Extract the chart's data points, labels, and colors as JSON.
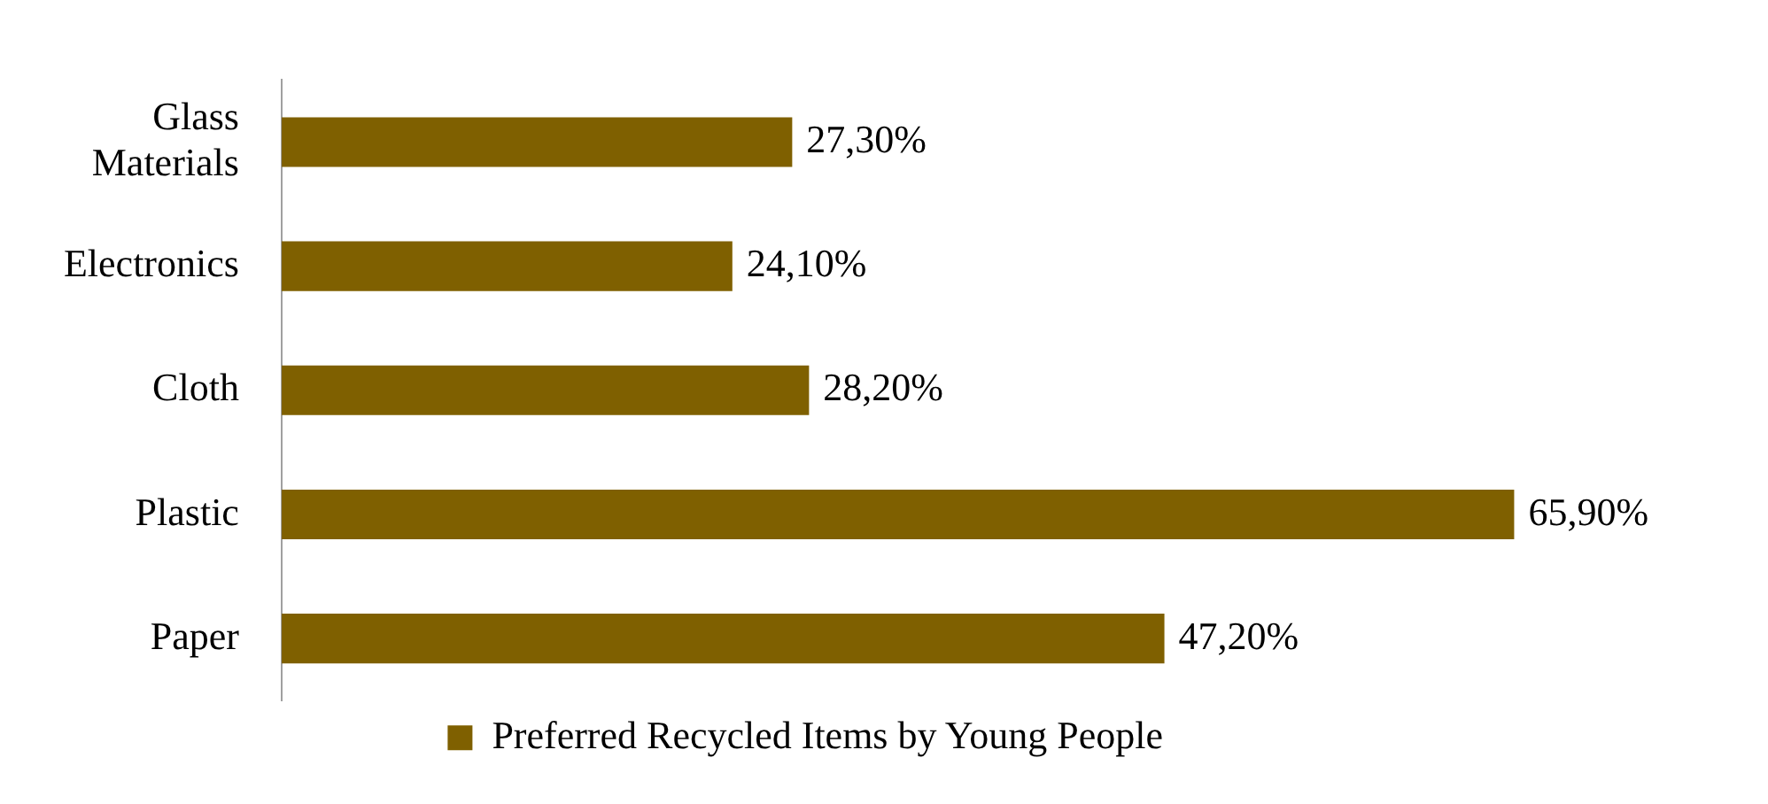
{
  "chart_data": {
    "type": "bar",
    "orientation": "horizontal",
    "categories": [
      "Glass Materials",
      "Electronics",
      "Cloth",
      "Plastic",
      "Paper"
    ],
    "series": [
      {
        "name": "Preferred Recycled Items by Young People",
        "color": "#7f6000",
        "values": [
          27.3,
          24.1,
          28.2,
          65.9,
          47.2
        ],
        "value_labels": [
          "27,30%",
          "24,10%",
          "28,20%",
          "65,90%",
          "47,20%"
        ]
      }
    ],
    "legend": "bottom",
    "grid": false
  }
}
